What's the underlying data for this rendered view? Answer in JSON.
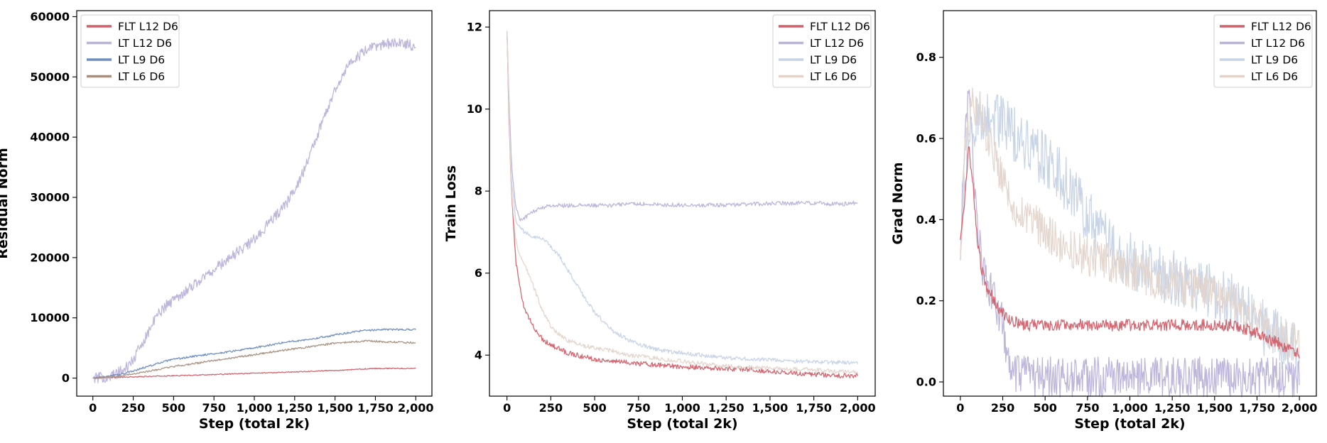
{
  "chart_data": [
    {
      "type": "line",
      "xlabel": "Step (total 2k)",
      "ylabel": "Residual Norm",
      "xlim": [
        -100,
        2100
      ],
      "ylim": [
        -3000,
        61000
      ],
      "xticks": [
        0,
        250,
        500,
        750,
        1000,
        1250,
        1500,
        1750,
        2000
      ],
      "xtick_labels": [
        "0",
        "250",
        "500",
        "750",
        "1,000",
        "1,250",
        "1,500",
        "1,750",
        "2,000"
      ],
      "yticks": [
        0,
        10000,
        20000,
        30000,
        40000,
        50000,
        60000
      ],
      "ytick_labels": [
        "0",
        "10000",
        "20000",
        "30000",
        "40000",
        "50000",
        "60000"
      ],
      "legend_position": "upper-left",
      "x": [
        0,
        100,
        200,
        250,
        300,
        350,
        400,
        450,
        500,
        600,
        700,
        800,
        900,
        1000,
        1100,
        1200,
        1300,
        1350,
        1400,
        1450,
        1500,
        1550,
        1600,
        1650,
        1700,
        1750,
        1800,
        1850,
        1900,
        1950,
        2000
      ],
      "series": [
        {
          "name": "FLT L12 D6",
          "color": "#d1606b",
          "noise": 80,
          "values": [
            0,
            80,
            150,
            190,
            230,
            270,
            310,
            350,
            390,
            470,
            550,
            630,
            720,
            810,
            900,
            990,
            1080,
            1130,
            1180,
            1230,
            1280,
            1330,
            1400,
            1470,
            1550,
            1580,
            1590,
            1600,
            1600,
            1600,
            1600
          ]
        },
        {
          "name": "LT L12 D6",
          "color": "#bcb3d9",
          "noise": 900,
          "values": [
            0,
            200,
            1500,
            3000,
            5500,
            8000,
            10500,
            12000,
            13000,
            15000,
            17000,
            19000,
            21000,
            23000,
            26000,
            29000,
            34000,
            37500,
            41000,
            44500,
            48000,
            50500,
            52500,
            53500,
            54500,
            55000,
            55500,
            55500,
            55500,
            55500,
            55000
          ]
        },
        {
          "name": "LT L9 D6",
          "color": "#6f8dbf",
          "noise": 150,
          "values": [
            0,
            300,
            800,
            1200,
            1600,
            2000,
            2400,
            2800,
            3100,
            3500,
            3900,
            4200,
            4600,
            5000,
            5500,
            6000,
            6300,
            6500,
            6700,
            6900,
            7200,
            7400,
            7600,
            7800,
            7900,
            8000,
            8050,
            8050,
            8050,
            8050,
            8050
          ]
        },
        {
          "name": "LT L6 D6",
          "color": "#a89080",
          "noise": 150,
          "values": [
            0,
            200,
            500,
            700,
            900,
            1150,
            1400,
            1650,
            1900,
            2300,
            2700,
            3100,
            3500,
            3900,
            4300,
            4700,
            5000,
            5200,
            5400,
            5600,
            5800,
            5900,
            6000,
            6100,
            6200,
            6100,
            6000,
            6000,
            5950,
            5900,
            5900
          ]
        }
      ]
    },
    {
      "type": "line",
      "xlabel": "Step (total 2k)",
      "ylabel": "Train Loss",
      "xlim": [
        -100,
        2100
      ],
      "ylim": [
        3.0,
        12.4
      ],
      "xticks": [
        0,
        250,
        500,
        750,
        1000,
        1250,
        1500,
        1750,
        2000
      ],
      "xtick_labels": [
        "0",
        "250",
        "500",
        "750",
        "1,000",
        "1,250",
        "1,500",
        "1,750",
        "2,000"
      ],
      "yticks": [
        4,
        6,
        8,
        10,
        12
      ],
      "ytick_labels": [
        "4",
        "6",
        "8",
        "10",
        "12"
      ],
      "legend_position": "upper-right",
      "x": [
        0,
        10,
        25,
        50,
        75,
        100,
        150,
        200,
        250,
        300,
        350,
        400,
        450,
        500,
        600,
        700,
        800,
        900,
        1000,
        1100,
        1200,
        1300,
        1400,
        1500,
        1600,
        1700,
        1800,
        1900,
        2000
      ],
      "series": [
        {
          "name": "FLT L12 D6",
          "color": "#d1606b",
          "noise": 0.06,
          "values": [
            11.9,
            10.0,
            8.0,
            6.3,
            5.6,
            5.1,
            4.7,
            4.4,
            4.25,
            4.15,
            4.05,
            4.0,
            3.95,
            3.9,
            3.85,
            3.82,
            3.78,
            3.75,
            3.72,
            3.7,
            3.68,
            3.66,
            3.65,
            3.6,
            3.58,
            3.55,
            3.52,
            3.5,
            3.5
          ]
        },
        {
          "name": "LT L12 D6",
          "color": "#bcb3d9",
          "noise": 0.05,
          "values": [
            11.9,
            10.5,
            8.7,
            7.6,
            7.3,
            7.35,
            7.5,
            7.6,
            7.65,
            7.65,
            7.65,
            7.65,
            7.65,
            7.65,
            7.65,
            7.7,
            7.68,
            7.66,
            7.66,
            7.66,
            7.66,
            7.67,
            7.68,
            7.7,
            7.7,
            7.72,
            7.7,
            7.68,
            7.72
          ]
        },
        {
          "name": "LT L9 D6",
          "color": "#c6d3e6",
          "noise": 0.05,
          "values": [
            11.9,
            10.3,
            8.3,
            7.3,
            7.1,
            7.0,
            6.9,
            6.85,
            6.65,
            6.4,
            6.05,
            5.7,
            5.35,
            5.05,
            4.6,
            4.35,
            4.2,
            4.1,
            4.05,
            4.0,
            3.95,
            3.92,
            3.9,
            3.88,
            3.86,
            3.85,
            3.83,
            3.82,
            3.8
          ]
        },
        {
          "name": "LT L6 D6",
          "color": "#e3d5cc",
          "noise": 0.05,
          "values": [
            11.9,
            10.2,
            8.0,
            6.8,
            6.4,
            6.2,
            5.7,
            5.1,
            4.7,
            4.5,
            4.35,
            4.28,
            4.22,
            4.18,
            4.1,
            4.0,
            3.95,
            3.9,
            3.85,
            3.8,
            3.75,
            3.72,
            3.7,
            3.68,
            3.66,
            3.65,
            3.63,
            3.6,
            3.6
          ]
        }
      ]
    },
    {
      "type": "line",
      "xlabel": "Step (total 2k)",
      "ylabel": "Grad Norm",
      "xlim": [
        -100,
        2100
      ],
      "ylim": [
        -0.035,
        0.915
      ],
      "xticks": [
        0,
        250,
        500,
        750,
        1000,
        1250,
        1500,
        1750,
        2000
      ],
      "xtick_labels": [
        "0",
        "250",
        "500",
        "750",
        "1,000",
        "1,250",
        "1,500",
        "1,750",
        "2,000"
      ],
      "yticks": [
        0.0,
        0.2,
        0.4,
        0.6,
        0.8
      ],
      "ytick_labels": [
        "0.0",
        "0.2",
        "0.4",
        "0.6",
        "0.8"
      ],
      "legend_position": "upper-right",
      "x": [
        0,
        25,
        50,
        75,
        100,
        125,
        150,
        200,
        250,
        275,
        300,
        350,
        400,
        500,
        600,
        700,
        800,
        900,
        1000,
        1100,
        1200,
        1300,
        1400,
        1500,
        1600,
        1700,
        1800,
        1900,
        2000
      ],
      "series": [
        {
          "name": "LT L12 D6",
          "color": "#bcb3d9",
          "noise": 0.05,
          "values": [
            0.3,
            0.6,
            0.7,
            0.55,
            0.4,
            0.3,
            0.25,
            0.2,
            0.15,
            0.05,
            0.02,
            0.015,
            0.015,
            0.012,
            0.012,
            0.012,
            0.012,
            0.012,
            0.012,
            0.012,
            0.012,
            0.012,
            0.012,
            0.012,
            0.012,
            0.012,
            0.012,
            0.012,
            0.01
          ]
        },
        {
          "name": "LT L9 D6",
          "color": "#c6d3e6",
          "noise": 0.07,
          "values": [
            0.3,
            0.5,
            0.6,
            0.62,
            0.65,
            0.66,
            0.66,
            0.65,
            0.64,
            0.63,
            0.62,
            0.6,
            0.58,
            0.55,
            0.5,
            0.44,
            0.38,
            0.33,
            0.3,
            0.28,
            0.26,
            0.25,
            0.23,
            0.22,
            0.2,
            0.17,
            0.13,
            0.1,
            0.08
          ]
        },
        {
          "name": "LT L6 D6",
          "color": "#e3d5cc",
          "noise": 0.05,
          "values": [
            0.3,
            0.55,
            0.65,
            0.68,
            0.68,
            0.66,
            0.62,
            0.56,
            0.5,
            0.48,
            0.45,
            0.42,
            0.4,
            0.37,
            0.34,
            0.32,
            0.3,
            0.29,
            0.28,
            0.26,
            0.25,
            0.24,
            0.23,
            0.22,
            0.2,
            0.17,
            0.14,
            0.11,
            0.09
          ]
        },
        {
          "name": "FLT L12 D6",
          "color": "#d1606b",
          "noise": 0.015,
          "values": [
            0.35,
            0.45,
            0.58,
            0.48,
            0.35,
            0.28,
            0.24,
            0.2,
            0.17,
            0.16,
            0.15,
            0.145,
            0.14,
            0.14,
            0.14,
            0.14,
            0.14,
            0.14,
            0.14,
            0.14,
            0.14,
            0.14,
            0.14,
            0.14,
            0.14,
            0.13,
            0.11,
            0.09,
            0.07
          ]
        }
      ],
      "legend_order": [
        "FLT L12 D6",
        "LT L12 D6",
        "LT L9 D6",
        "LT L6 D6"
      ]
    }
  ]
}
